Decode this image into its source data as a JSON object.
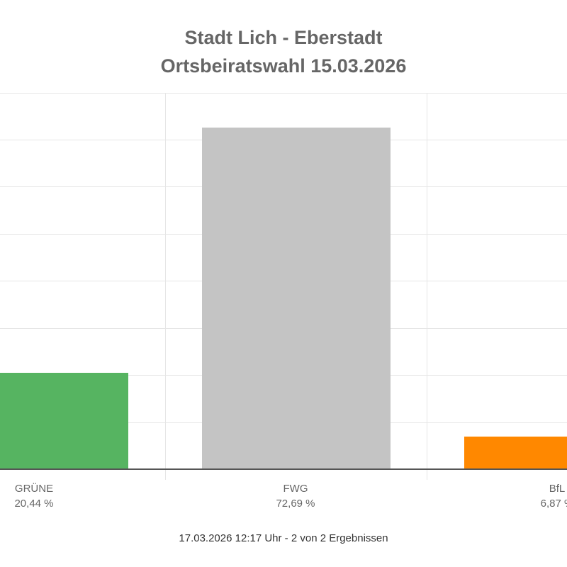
{
  "title": {
    "line1": "Stadt Lich - Eberstadt",
    "line2": "Ortsbeiratswahl 15.03.2026"
  },
  "footer": "17.03.2026 12:17 Uhr - 2 von 2 Ergebnissen",
  "bars": [
    {
      "label": "GRÜNE",
      "value_label": "20,44 %",
      "color": "#56B461"
    },
    {
      "label": "FWG",
      "value_label": "72,69 %",
      "color": "#C4C4C4"
    },
    {
      "label": "BfL",
      "value_label": "6,87 %",
      "color": "#FF8800"
    }
  ],
  "chart_data": {
    "type": "bar",
    "title": "Stadt Lich - Eberstadt / Ortsbeiratswahl 15.03.2026",
    "categories": [
      "GRÜNE",
      "FWG",
      "BfL"
    ],
    "values": [
      20.44,
      72.69,
      6.87
    ],
    "unit": "%",
    "colors": [
      "#56B461",
      "#C4C4C4",
      "#FF8800"
    ],
    "xlabel": "",
    "ylabel": "",
    "ylim": [
      0,
      80
    ],
    "grid": true,
    "y_tick_labels_visible": false,
    "legend": "none",
    "annotation": "17.03.2026 12:17 Uhr - 2 von 2 Ergebnissen"
  }
}
